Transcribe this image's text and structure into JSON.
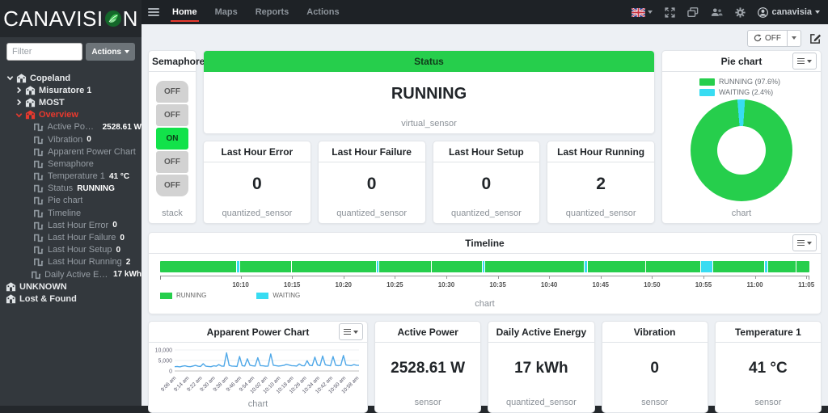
{
  "colors": {
    "green": "#26ce4c",
    "cyan": "#38dcf2",
    "red": "#e8392e",
    "blue": "#4fa8e8",
    "semaphore_on": "#12e24a"
  },
  "navbar": {
    "brand_left": "CANAVISI",
    "brand_right": "N",
    "menu": [
      {
        "label": "Home",
        "active": true
      },
      {
        "label": "Maps",
        "active": false
      },
      {
        "label": "Reports",
        "active": false
      },
      {
        "label": "Actions",
        "active": false
      }
    ],
    "right_icons": [
      "uk-flag-icon",
      "fullscreen-icon",
      "screens-icon",
      "users-icon",
      "gear-icon",
      "user-circle-icon"
    ],
    "user": "canavisia"
  },
  "sidebar": {
    "filter_placeholder": "Filter",
    "actions_label": "Actions",
    "tree": [
      {
        "level": 0,
        "chevron": "down",
        "icon": "building-icon",
        "label": "Copeland",
        "kind": "group"
      },
      {
        "level": 1,
        "chevron": "right",
        "icon": "building-icon",
        "label": "Misuratore 1",
        "kind": "group"
      },
      {
        "level": 1,
        "chevron": "right",
        "icon": "building-icon",
        "label": "MOST",
        "kind": "group"
      },
      {
        "level": 1,
        "chevron": "down",
        "icon": "building-icon",
        "label": "Overview",
        "kind": "group",
        "active": true
      },
      {
        "level": 2,
        "icon": "square-wave-icon",
        "label": "Active Power",
        "value": "2528.61 W",
        "kind": "sensor"
      },
      {
        "level": 2,
        "icon": "square-wave-icon",
        "label": "Vibration",
        "value": "0",
        "kind": "sensor"
      },
      {
        "level": 2,
        "icon": "square-wave-icon",
        "label": "Apparent Power Chart",
        "kind": "sensor"
      },
      {
        "level": 2,
        "icon": "square-wave-icon",
        "label": "Semaphore",
        "kind": "sensor"
      },
      {
        "level": 2,
        "icon": "square-wave-icon",
        "label": "Temperature 1",
        "value": "41 °C",
        "kind": "sensor"
      },
      {
        "level": 2,
        "icon": "square-wave-icon",
        "label": "Status",
        "value": "RUNNING",
        "kind": "sensor"
      },
      {
        "level": 2,
        "icon": "square-wave-icon",
        "label": "Pie chart",
        "kind": "sensor"
      },
      {
        "level": 2,
        "icon": "square-wave-icon",
        "label": "Timeline",
        "kind": "sensor"
      },
      {
        "level": 2,
        "icon": "square-wave-icon",
        "label": "Last Hour Error",
        "value": "0",
        "kind": "sensor"
      },
      {
        "level": 2,
        "icon": "square-wave-icon",
        "label": "Last Hour Failure",
        "value": "0",
        "kind": "sensor"
      },
      {
        "level": 2,
        "icon": "square-wave-icon",
        "label": "Last Hour Setup",
        "value": "0",
        "kind": "sensor"
      },
      {
        "level": 2,
        "icon": "square-wave-icon",
        "label": "Last Hour Running",
        "value": "2",
        "kind": "sensor"
      },
      {
        "level": 2,
        "icon": "square-wave-icon",
        "label": "Daily Active Energy",
        "value": "17 kWh",
        "kind": "sensor"
      },
      {
        "level": 0,
        "icon": "building-icon",
        "label": "UNKNOWN",
        "kind": "group"
      },
      {
        "level": 0,
        "icon": "building-icon",
        "label": "Lost & Found",
        "kind": "group"
      }
    ]
  },
  "toolbar": {
    "refresh_label": "OFF"
  },
  "panels": {
    "semaphore": {
      "title": "Semaphore",
      "lights": [
        "OFF",
        "OFF",
        "ON",
        "OFF",
        "OFF"
      ],
      "footer": "stack"
    },
    "status": {
      "title": "Status",
      "value": "RUNNING",
      "footer": "virtual_sensor"
    },
    "pie": {
      "title": "Pie chart",
      "footer": "chart"
    },
    "stat_cards": [
      {
        "title": "Last Hour Error",
        "value": "0",
        "footer": "quantized_sensor"
      },
      {
        "title": "Last Hour Failure",
        "value": "0",
        "footer": "quantized_sensor"
      },
      {
        "title": "Last Hour Setup",
        "value": "0",
        "footer": "quantized_sensor"
      },
      {
        "title": "Last Hour Running",
        "value": "2",
        "footer": "quantized_sensor"
      }
    ],
    "timeline": {
      "title": "Timeline",
      "footer": "chart"
    },
    "apparent": {
      "title": "Apparent Power Chart",
      "footer": "chart"
    },
    "bottom_cards": [
      {
        "title": "Active Power",
        "value": "2528.61 W",
        "footer": "sensor"
      },
      {
        "title": "Daily Active Energy",
        "value": "17 kWh",
        "footer": "quantized_sensor"
      },
      {
        "title": "Vibration",
        "value": "0",
        "footer": "sensor"
      },
      {
        "title": "Temperature 1",
        "value": "41 °C",
        "footer": "sensor"
      }
    ]
  },
  "chart_data": [
    {
      "type": "pie",
      "title": "Pie chart",
      "labels": [
        "RUNNING",
        "WAITING"
      ],
      "values": [
        97.6,
        2.4
      ],
      "colors": [
        "#26ce4c",
        "#38dcf2"
      ],
      "legend_entries": [
        "RUNNING (97.6%)",
        "WAITING (2.4%)"
      ],
      "legend_position": "top",
      "donut": true,
      "footer": "chart"
    },
    {
      "type": "bar",
      "subtype": "horizontal-state-timeline",
      "title": "Timeline",
      "legend": [
        "RUNNING",
        "WAITING"
      ],
      "state_colors": {
        "RUNNING": "#26ce4c",
        "WAITING": "#38dcf2"
      },
      "x_ticks": [
        "10:10",
        "10:15",
        "10:20",
        "10:25",
        "10:30",
        "10:35",
        "10:40",
        "10:45",
        "10:50",
        "10:55",
        "11:00",
        "11:05"
      ],
      "segments": [
        {
          "state": "RUNNING",
          "pct": 11.9
        },
        {
          "state": "WAITING",
          "pct": 0.4
        },
        {
          "state": "RUNNING",
          "pct": 8.0
        },
        {
          "state": "RUNNING",
          "pct": 13.2
        },
        {
          "state": "WAITING",
          "pct": 0.3
        },
        {
          "state": "RUNNING",
          "pct": 8.1
        },
        {
          "state": "RUNNING",
          "pct": 7.9
        },
        {
          "state": "WAITING",
          "pct": 0.3
        },
        {
          "state": "RUNNING",
          "pct": 15.5
        },
        {
          "state": "WAITING",
          "pct": 0.4
        },
        {
          "state": "RUNNING",
          "pct": 9.0
        },
        {
          "state": "RUNNING",
          "pct": 8.5
        },
        {
          "state": "WAITING",
          "pct": 1.8
        },
        {
          "state": "RUNNING",
          "pct": 8.0
        },
        {
          "state": "WAITING",
          "pct": 0.3
        },
        {
          "state": "RUNNING",
          "pct": 4.4
        },
        {
          "state": "RUNNING",
          "pct": 2.0
        }
      ],
      "footer": "chart"
    },
    {
      "type": "line",
      "title": "Apparent Power Chart",
      "color": "#4fa8e8",
      "ylim": [
        0,
        10000
      ],
      "y_tick_labels": [
        "10,000",
        "5,000",
        "0"
      ],
      "x_tick_labels": [
        "9:06 am",
        "9:14 am",
        "9:22 am",
        "9:30 am",
        "9:38 am",
        "9:46 am",
        "9:54 am",
        "10:02 am",
        "10:10 am",
        "10:18 am",
        "10:26 am",
        "10:34 am",
        "10:42 am",
        "10:50 am",
        "10:58 am"
      ],
      "values": [
        2050,
        2150,
        1950,
        2250,
        2450,
        2150,
        2050,
        2350,
        2650,
        2250,
        2150,
        3450,
        2250,
        2150,
        2050,
        2450,
        2250,
        3050,
        2350,
        2250,
        8600,
        2650,
        2350,
        2250,
        2150,
        6900,
        2550,
        2350,
        5800,
        2750,
        2450,
        2350,
        6300,
        2550,
        2450,
        2250,
        2350,
        8100,
        2750,
        2550,
        2350,
        2450,
        2650,
        3150,
        2850,
        2550,
        2450,
        2350,
        3350,
        2550,
        2450,
        4900,
        2650,
        2550,
        6600,
        2850,
        2550,
        7100,
        2950,
        2650,
        2450,
        6900,
        2750,
        2550,
        2650,
        7400,
        2850,
        2650,
        2550,
        3050,
        2750,
        2650
      ],
      "footer": "chart"
    }
  ]
}
